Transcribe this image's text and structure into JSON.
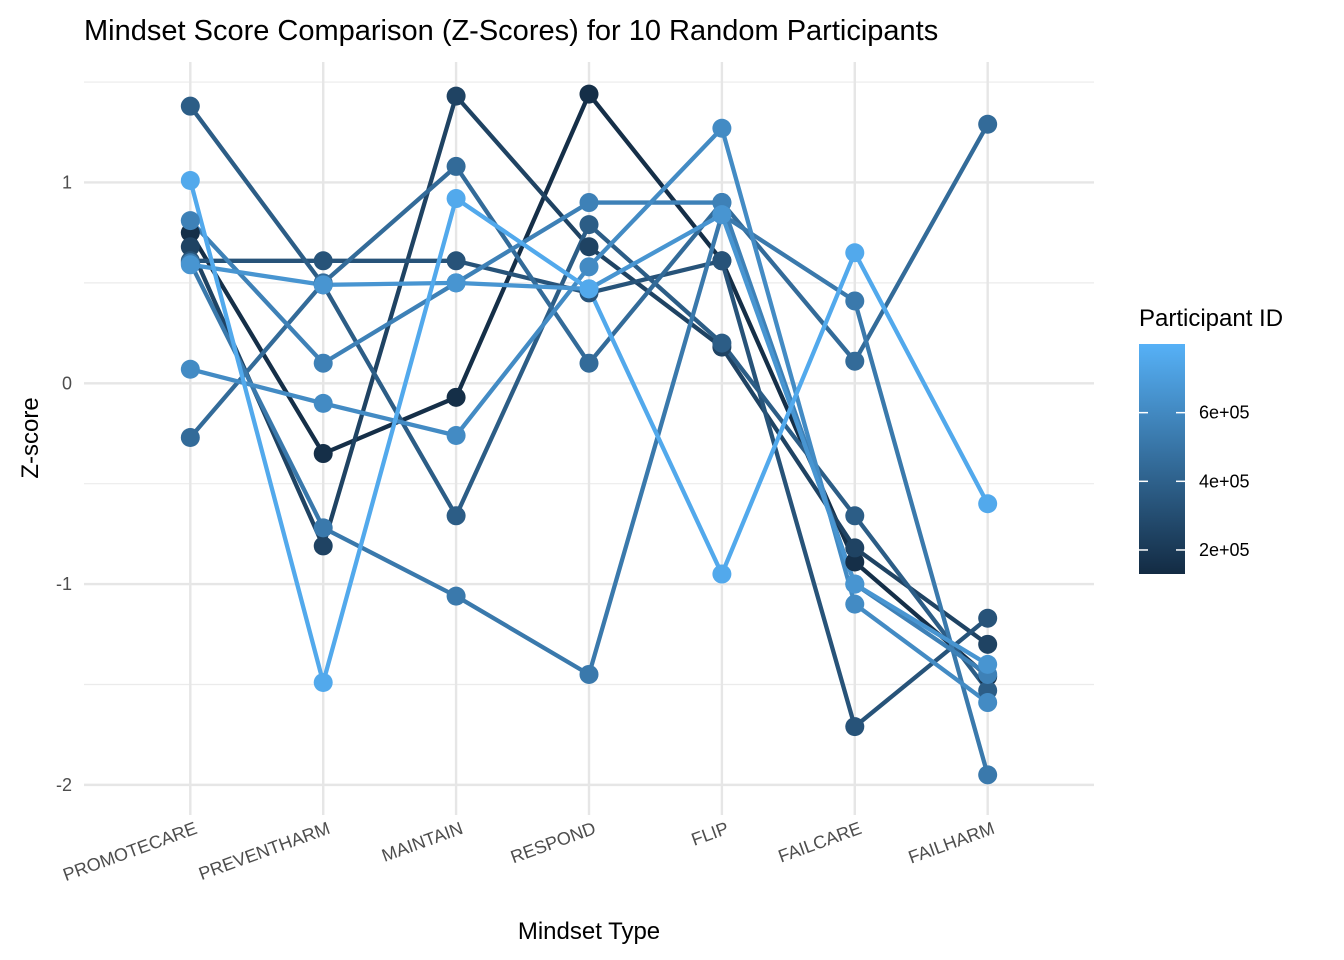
{
  "chart_data": {
    "type": "line",
    "title": "Mindset Score Comparison (Z-Scores) for 10 Random Participants",
    "xlabel": "Mindset Type",
    "ylabel": "Z-score",
    "categories": [
      "PROMOTECARE",
      "PREVENTHARM",
      "MAINTAIN",
      "RESPOND",
      "FLIP",
      "FAILCARE",
      "FAILHARM"
    ],
    "ylim": [
      -2.15,
      1.6
    ],
    "yticks": [
      -2,
      -1,
      0,
      1
    ],
    "ytick_labels": [
      "-2",
      "-1",
      "0",
      "1"
    ],
    "grid": true,
    "legend": {
      "title": "Participant ID",
      "placement": "right",
      "type": "colorbar",
      "range": [
        130000,
        800000
      ],
      "ticks": [
        200000,
        400000,
        600000
      ],
      "tick_labels": [
        "2e+05",
        "4e+05",
        "6e+05"
      ],
      "color_low": "#132B43",
      "color_high": "#56B1F7"
    },
    "series": [
      {
        "id": 150000,
        "values": [
          0.75,
          -0.35,
          -0.07,
          1.44,
          0.61,
          -0.89,
          -1.46
        ]
      },
      {
        "id": 250000,
        "values": [
          0.68,
          -0.81,
          1.43,
          0.68,
          0.18,
          -0.82,
          -1.3
        ]
      },
      {
        "id": 330000,
        "values": [
          0.61,
          0.61,
          0.61,
          0.45,
          0.61,
          -1.71,
          -1.17
        ]
      },
      {
        "id": 380000,
        "values": [
          1.38,
          0.49,
          -0.66,
          0.79,
          0.2,
          -0.66,
          -1.53
        ]
      },
      {
        "id": 450000,
        "values": [
          -0.27,
          0.5,
          1.08,
          0.1,
          0.9,
          0.11,
          1.29
        ]
      },
      {
        "id": 520000,
        "values": [
          0.6,
          -0.72,
          -1.06,
          -1.45,
          0.84,
          0.41,
          -1.95
        ]
      },
      {
        "id": 560000,
        "values": [
          0.81,
          0.1,
          0.5,
          0.9,
          0.9,
          -1.0,
          -1.45
        ]
      },
      {
        "id": 610000,
        "values": [
          0.07,
          -0.1,
          -0.26,
          0.58,
          1.27,
          -1.1,
          -1.59
        ]
      },
      {
        "id": 660000,
        "values": [
          0.59,
          0.49,
          0.5,
          0.47,
          0.84,
          -1.0,
          -1.4
        ]
      },
      {
        "id": 760000,
        "values": [
          1.01,
          -1.49,
          0.92,
          0.47,
          -0.95,
          0.65,
          -0.6
        ]
      }
    ]
  }
}
